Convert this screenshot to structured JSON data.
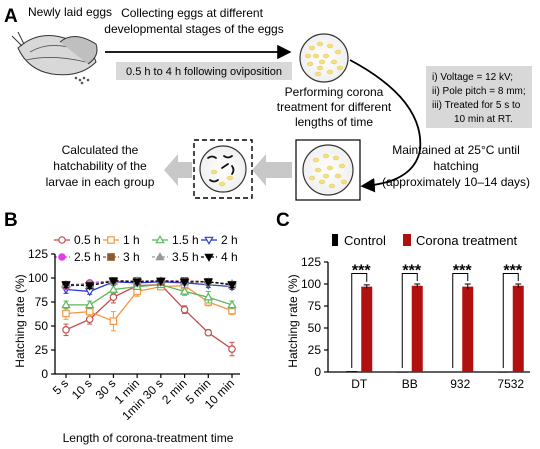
{
  "panelA": {
    "label": "A",
    "newly_laid": "Newly laid eggs",
    "collect_line1": "Collecting eggs at different",
    "collect_line2": "developmental stages of the eggs",
    "oviposition": "0.5 h to 4 h following oviposition",
    "perform_line1": "Performing corona",
    "perform_line2": "treatment for different",
    "perform_line3": "lengths of time",
    "cond_line1": "i)    Voltage = 12 kV;",
    "cond_line2": "ii)   Pole pitch = 8 mm;",
    "cond_line3": "iii)  Treated for 5 s to",
    "cond_line4": "10 min at RT.",
    "calc_line1": "Calculated the",
    "calc_line2": "hatchability of the",
    "calc_line3": "larvae in each group",
    "maint_line1": "Maintained at 25°C until",
    "maint_line2": "hatching",
    "maint_line3": "(approximately 10–14 days)"
  },
  "panelB": {
    "label": "B",
    "chart_data": {
      "type": "line",
      "ylabel": "Hatching rate (%)",
      "xlabel": "Length of corona-treatment time",
      "ylim": [
        0,
        125
      ],
      "yticks": [
        "0",
        "25",
        "50",
        "75",
        "100",
        "125"
      ],
      "categories": [
        "5 s",
        "10 s",
        "30 s",
        "1 min",
        "1min 30 s",
        "2 min",
        "5 min",
        "10 min"
      ],
      "series": [
        {
          "name": "0.5 h",
          "color": "#c0504d",
          "marker": "circle-open",
          "dash": false,
          "values": [
            46,
            57,
            80,
            92,
            93,
            67,
            43,
            26
          ],
          "err": [
            6,
            5,
            6,
            3,
            3,
            4,
            3,
            7
          ]
        },
        {
          "name": "1 h",
          "color": "#f79646",
          "marker": "square-open",
          "dash": false,
          "values": [
            63,
            65,
            55,
            86,
            91,
            92,
            75,
            66
          ],
          "err": [
            6,
            5,
            10,
            5,
            3,
            3,
            4,
            4
          ]
        },
        {
          "name": "1.5 h",
          "color": "#5cb85c",
          "marker": "triangle-open",
          "dash": false,
          "values": [
            72,
            72,
            88,
            91,
            93,
            86,
            80,
            72
          ],
          "err": [
            4,
            4,
            4,
            3,
            3,
            4,
            6,
            4
          ]
        },
        {
          "name": "2 h",
          "color": "#2a3fd4",
          "marker": "triangle-down-open",
          "dash": false,
          "values": [
            88,
            86,
            96,
            95,
            96,
            95,
            93,
            91
          ],
          "err": [
            4,
            3,
            3,
            2,
            2,
            2,
            3,
            3
          ]
        },
        {
          "name": "2.5 h",
          "color": "#e040e0",
          "marker": "circle-filled",
          "dash": true,
          "values": [
            91,
            95,
            97,
            97,
            97,
            97,
            96,
            93
          ],
          "err": [
            3,
            2,
            2,
            2,
            2,
            2,
            2,
            3
          ]
        },
        {
          "name": "3 h",
          "color": "#8a5a2b",
          "marker": "square-filled",
          "dash": true,
          "values": [
            93,
            93,
            97,
            97,
            96,
            97,
            96,
            93
          ],
          "err": [
            3,
            3,
            2,
            2,
            2,
            2,
            2,
            3
          ]
        },
        {
          "name": "3.5 h",
          "color": "#999999",
          "marker": "triangle-filled",
          "dash": true,
          "values": [
            93,
            94,
            96,
            97,
            97,
            96,
            96,
            94
          ],
          "err": [
            3,
            2,
            2,
            2,
            2,
            2,
            2,
            2
          ]
        },
        {
          "name": "4 h",
          "color": "#000000",
          "marker": "triangle-down-filled",
          "dash": true,
          "values": [
            93,
            92,
            97,
            96,
            97,
            96,
            96,
            93
          ],
          "err": [
            3,
            3,
            2,
            2,
            2,
            2,
            2,
            3
          ]
        }
      ]
    }
  },
  "panelC": {
    "label": "C",
    "chart_data": {
      "type": "bar",
      "ylabel": "Hatching rate (%)",
      "ylim": [
        0,
        125
      ],
      "yticks": [
        "0",
        "25",
        "50",
        "75",
        "100",
        "125"
      ],
      "categories": [
        "DT",
        "BB",
        "932",
        "7532"
      ],
      "series": [
        {
          "name": "Control",
          "color": "#000000",
          "values": [
            1,
            0,
            0.5,
            0
          ],
          "err": [
            1,
            0,
            0.5,
            0
          ]
        },
        {
          "name": "Corona treatment",
          "color": "#b01010",
          "values": [
            97,
            98,
            97,
            98
          ],
          "err": [
            2,
            2,
            3,
            2
          ]
        }
      ],
      "significance": [
        "***",
        "***",
        "***",
        "***"
      ]
    }
  }
}
